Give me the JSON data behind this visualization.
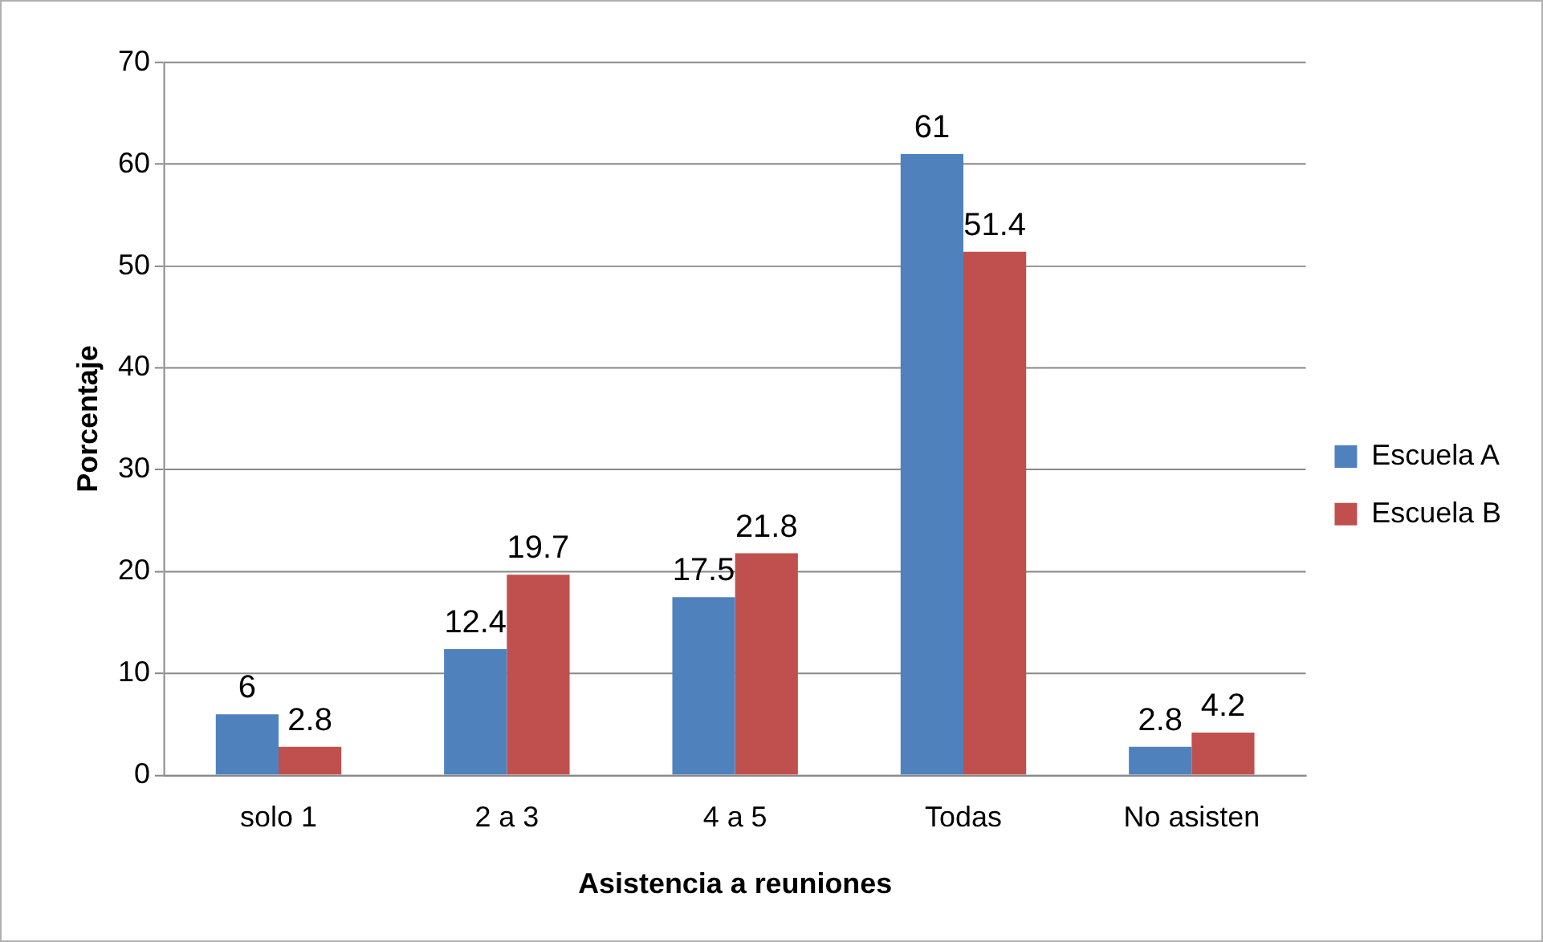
{
  "chart_data": {
    "type": "bar",
    "xlabel": "Asistencia a reuniones",
    "ylabel": "Porcentaje",
    "categories": [
      "solo 1",
      "2 a 3",
      "4 a 5",
      "Todas",
      "No asisten"
    ],
    "series": [
      {
        "name": "Escuela A",
        "color": "#4f81bd",
        "values": [
          6,
          12.4,
          17.5,
          61,
          2.8
        ]
      },
      {
        "name": "Escuela B",
        "color": "#c0504d",
        "values": [
          2.8,
          19.7,
          21.8,
          51.4,
          4.2
        ]
      }
    ],
    "ylim": [
      0,
      70
    ],
    "yticks": [
      0,
      10,
      20,
      30,
      40,
      50,
      60,
      70
    ],
    "grid": "y",
    "legend": "right",
    "data_labels": true
  }
}
